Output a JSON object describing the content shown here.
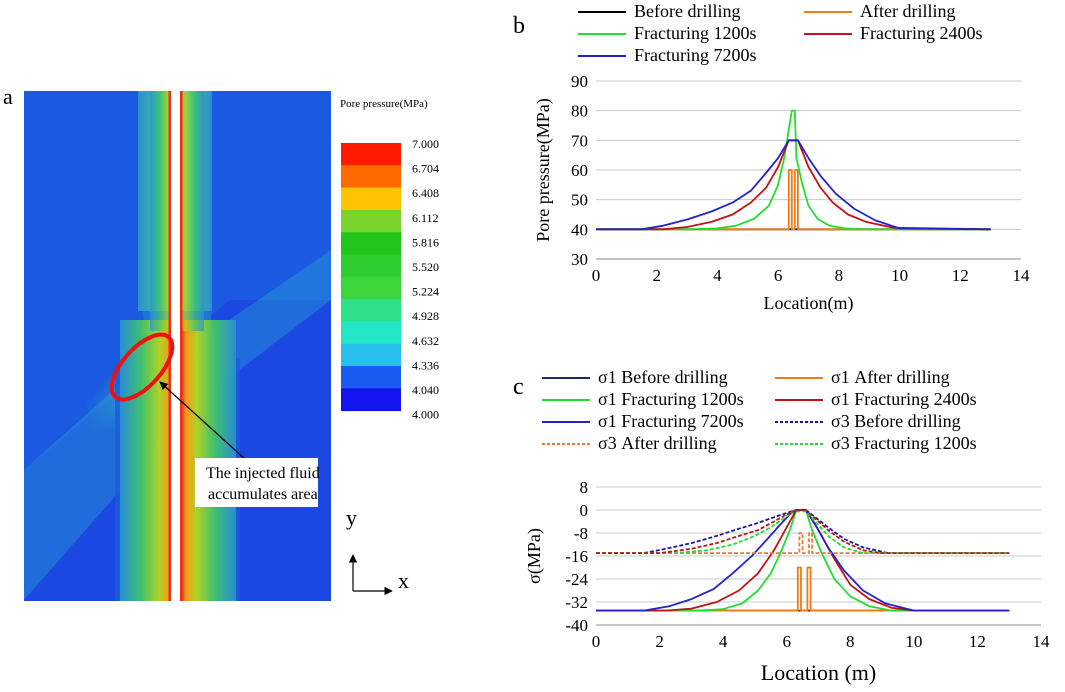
{
  "panel_a": {
    "label": "a",
    "colorbar_title": "Pore pressure(MPa)",
    "colorbar": {
      "ticks": [
        "7.000",
        "6.704",
        "6.408",
        "6.112",
        "5.816",
        "5.520",
        "5.224",
        "4.928",
        "4.632",
        "4.336",
        "4.040",
        "4.000"
      ],
      "colors": [
        "#ff1a00",
        "#ff6a00",
        "#ffc400",
        "#79d32c",
        "#22c51b",
        "#2ecc2e",
        "#3cd63c",
        "#2ee08a",
        "#22e8c8",
        "#28c0ee",
        "#1a5cf2",
        "#1414ee"
      ]
    },
    "annotation_line1": "The injected fluid",
    "annotation_line2": "accumulates area",
    "axis_y": "y",
    "axis_x": "x"
  },
  "chart_data": [
    {
      "type": "line",
      "panel_label": "b",
      "title": "",
      "xlabel": "Location(m)",
      "ylabel": "Pore pressure(MPa)",
      "xlim": [
        0,
        14
      ],
      "ylim": [
        30,
        90
      ],
      "xticks": [
        "0",
        "2",
        "4",
        "6",
        "8",
        "10",
        "12",
        "14"
      ],
      "yticks": [
        "30",
        "40",
        "50",
        "60",
        "70",
        "80",
        "90"
      ],
      "grid": "horizontal",
      "legend": "top",
      "series": [
        {
          "name": "Before drilling",
          "color": "#000000",
          "dash": "solid",
          "x": [
            0,
            6.35,
            6.35,
            6.65,
            6.65,
            13
          ],
          "y": [
            40,
            40,
            40,
            40,
            40,
            40
          ]
        },
        {
          "name": "After drilling",
          "color": "#f07b14",
          "dash": "solid",
          "x": [
            0,
            6.35,
            6.35,
            6.45,
            6.45,
            6.55,
            6.55,
            6.65,
            6.65,
            13
          ],
          "y": [
            40,
            40,
            60,
            60,
            40,
            40,
            60,
            60,
            40,
            40
          ]
        },
        {
          "name": "Fracturing 1200s",
          "color": "#22dd33",
          "dash": "solid",
          "x": [
            0,
            3,
            4,
            4.6,
            5.2,
            5.7,
            6.0,
            6.2,
            6.45,
            6.55,
            6.6,
            6.8,
            7.0,
            7.3,
            7.7,
            8.2,
            8.8,
            13
          ],
          "y": [
            40,
            40,
            40.3,
            41.2,
            43.5,
            48,
            55,
            64,
            80,
            80,
            64,
            55,
            48,
            43.5,
            41.2,
            40.3,
            40,
            40
          ]
        },
        {
          "name": "Fracturing 2400s",
          "color": "#c01414",
          "dash": "solid",
          "x": [
            0,
            2.2,
            3,
            3.8,
            4.5,
            5.1,
            5.6,
            6.0,
            6.35,
            6.65,
            7.0,
            7.4,
            7.8,
            8.3,
            8.9,
            9.8,
            13
          ],
          "y": [
            40,
            40,
            40.8,
            42.5,
            45,
            49,
            54,
            61,
            70,
            70,
            61,
            54,
            49,
            45,
            42.5,
            40.5,
            40
          ]
        },
        {
          "name": "Fracturing 7200s",
          "color": "#2222cc",
          "dash": "solid",
          "x": [
            0,
            1.5,
            2.2,
            3,
            3.8,
            4.5,
            5.1,
            5.6,
            6.0,
            6.35,
            6.65,
            7.0,
            7.4,
            7.9,
            8.5,
            9.2,
            10,
            13
          ],
          "y": [
            40,
            40,
            41.2,
            43.3,
            46,
            49,
            53,
            59,
            64,
            70,
            70,
            64,
            58,
            52,
            47,
            43,
            40.3,
            40
          ]
        }
      ]
    },
    {
      "type": "line",
      "panel_label": "c",
      "title": "",
      "xlabel": "Location (m)",
      "ylabel": "σ(MPa)",
      "xlim": [
        0,
        14
      ],
      "ylim": [
        -40,
        8
      ],
      "xticks": [
        "0",
        "2",
        "4",
        "6",
        "8",
        "10",
        "12",
        "14"
      ],
      "yticks": [
        "8",
        "0",
        "-8",
        "-16",
        "-24",
        "-32",
        "-40"
      ],
      "grid": "horizontal",
      "legend": "top",
      "series": [
        {
          "name": "σ1 Before drilling",
          "color": "#1a2a6a",
          "dash": "solid",
          "x": [
            0,
            13
          ],
          "y": [
            -35,
            -35
          ]
        },
        {
          "name": "σ1 After drilling",
          "color": "#f07b14",
          "dash": "solid",
          "x": [
            0,
            6.35,
            6.35,
            6.45,
            6.45,
            6.65,
            6.65,
            6.75,
            6.75,
            13
          ],
          "y": [
            -35,
            -35,
            -20,
            -20,
            -35,
            -35,
            -20,
            -20,
            -35,
            -35
          ]
        },
        {
          "name": "σ1 Fracturing 1200s",
          "color": "#22dd33",
          "dash": "solid",
          "x": [
            0,
            3.2,
            4,
            4.6,
            5.1,
            5.5,
            5.8,
            6.1,
            6.3,
            6.6,
            6.8,
            7.1,
            7.5,
            8.0,
            8.6,
            9.3,
            13
          ],
          "y": [
            -35,
            -35,
            -34.5,
            -32.5,
            -28,
            -22,
            -15,
            -7,
            0,
            0,
            -7,
            -15,
            -24,
            -30,
            -33.5,
            -35,
            -35
          ]
        },
        {
          "name": "σ1 Fracturing 2400s",
          "color": "#c01414",
          "dash": "solid",
          "x": [
            0,
            2.2,
            3,
            3.8,
            4.5,
            5.1,
            5.6,
            6.0,
            6.3,
            6.6,
            7.0,
            7.5,
            8.0,
            8.6,
            9.3,
            10,
            13
          ],
          "y": [
            -35,
            -35,
            -34.3,
            -32,
            -28,
            -22,
            -14,
            -6,
            0,
            0,
            -7,
            -17,
            -26,
            -31,
            -34,
            -35,
            -35
          ]
        },
        {
          "name": "σ1 Fracturing 7200s",
          "color": "#2222cc",
          "dash": "solid",
          "x": [
            0,
            1.5,
            2.3,
            3,
            3.7,
            4.3,
            4.9,
            5.4,
            5.8,
            6.1,
            6.3,
            6.6,
            6.9,
            7.3,
            7.8,
            8.4,
            9.1,
            10,
            13
          ],
          "y": [
            -35,
            -35,
            -33.5,
            -31,
            -27.5,
            -22,
            -16,
            -10,
            -5,
            -1.5,
            0,
            0,
            -5,
            -13,
            -21,
            -28,
            -32.5,
            -35,
            -35
          ]
        },
        {
          "name": "σ3 Before drilling",
          "color": "#1a1aa0",
          "dash": "dashed",
          "x": [
            0,
            1.5,
            2.2,
            3,
            3.8,
            4.5,
            5.1,
            5.6,
            6.0,
            6.3,
            6.6,
            6.9,
            7.3,
            7.8,
            8.4,
            9.2,
            13
          ],
          "y": [
            -15,
            -15,
            -13.5,
            -11.5,
            -9,
            -6.5,
            -4.5,
            -2.5,
            -1,
            0,
            0,
            -2.5,
            -6,
            -10,
            -13,
            -15,
            -15
          ]
        },
        {
          "name": "σ3 After drilling",
          "color": "#e87b3a",
          "dash": "dashed",
          "x": [
            0,
            6.4,
            6.4,
            6.5,
            6.5,
            6.7,
            6.7,
            6.8,
            6.8,
            13
          ],
          "y": [
            -15,
            -15,
            -8,
            -8,
            -15,
            -15,
            -8,
            -8,
            -15,
            -15
          ]
        },
        {
          "name": "σ3 Fracturing 1200s",
          "color": "#22dd33",
          "dash": "dashed",
          "x": [
            0,
            2.5,
            3.5,
            4.3,
            5.0,
            5.5,
            5.9,
            6.2,
            6.6,
            6.9,
            7.3,
            7.8,
            8.4,
            13
          ],
          "y": [
            -15,
            -15,
            -14,
            -12,
            -9,
            -6,
            -3,
            -0.5,
            -0.5,
            -4,
            -9,
            -13,
            -15,
            -15
          ]
        },
        {
          "name": "σ3 Fracturing 2400s",
          "color": "#c01414",
          "dash": "dashed",
          "in_legend": false,
          "x": [
            0,
            2,
            3,
            3.8,
            4.5,
            5.1,
            5.6,
            6.0,
            6.3,
            6.6,
            6.9,
            7.3,
            7.8,
            8.4,
            9.0,
            13
          ],
          "y": [
            -15,
            -15,
            -13.5,
            -11.5,
            -9,
            -7,
            -4,
            -1.5,
            0,
            0,
            -3,
            -7,
            -11,
            -14,
            -15,
            -15
          ]
        }
      ]
    }
  ]
}
